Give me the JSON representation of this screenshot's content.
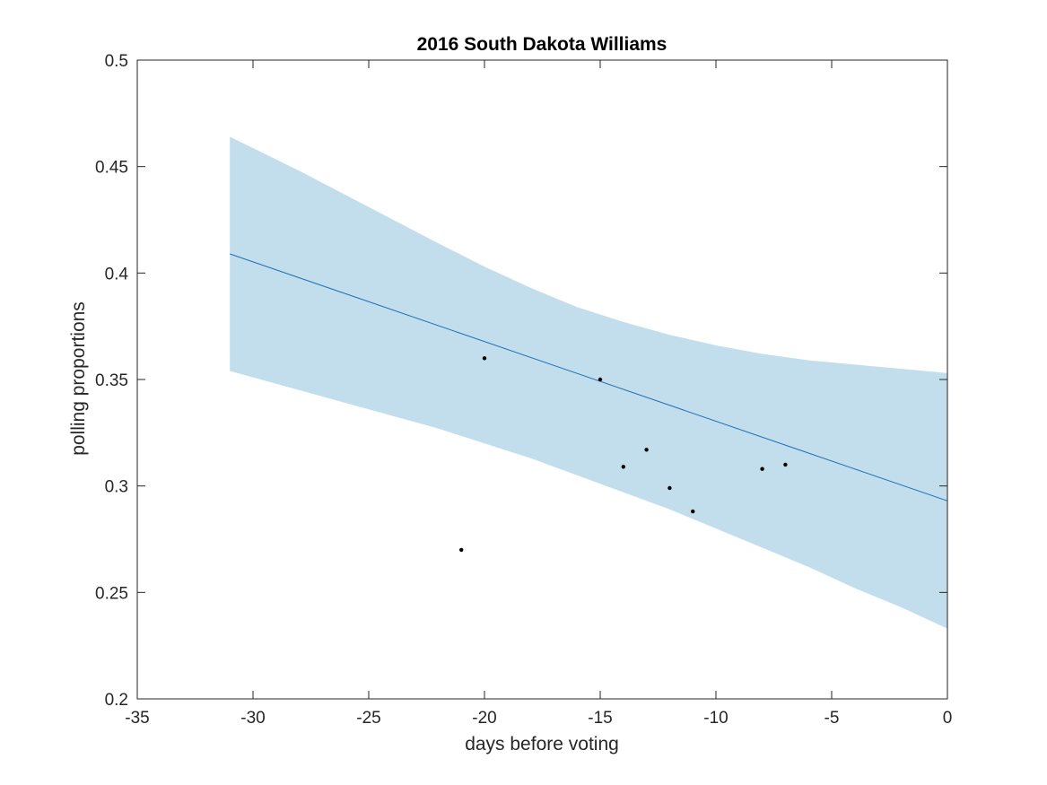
{
  "chart_data": {
    "type": "scatter",
    "title": "2016 South Dakota Williams",
    "xlabel": "days before voting",
    "ylabel": "polling proportions",
    "xlim": [
      -35,
      0
    ],
    "ylim": [
      0.2,
      0.5
    ],
    "x_ticks": [
      -35,
      -30,
      -25,
      -20,
      -15,
      -10,
      -5,
      0
    ],
    "x_tick_labels": [
      "-35",
      "-30",
      "-25",
      "-20",
      "-15",
      "-10",
      "-5",
      "0"
    ],
    "y_ticks": [
      0.2,
      0.25,
      0.3,
      0.35,
      0.4,
      0.45,
      0.5
    ],
    "y_tick_labels": [
      "0.2",
      "0.25",
      "0.3",
      "0.35",
      "0.4",
      "0.45",
      "0.5"
    ],
    "grid": false,
    "colors": {
      "band": "#c2deec",
      "line": "#1f6fb5",
      "points": "#000000",
      "axis": "#262626"
    },
    "points": [
      {
        "x": -21,
        "y": 0.27
      },
      {
        "x": -20,
        "y": 0.36
      },
      {
        "x": -15,
        "y": 0.35
      },
      {
        "x": -14,
        "y": 0.309
      },
      {
        "x": -13,
        "y": 0.317
      },
      {
        "x": -12,
        "y": 0.299
      },
      {
        "x": -11,
        "y": 0.288
      },
      {
        "x": -8,
        "y": 0.308
      },
      {
        "x": -7,
        "y": 0.31
      }
    ],
    "trend_line": {
      "x": [
        -31,
        0
      ],
      "y": [
        0.409,
        0.293
      ]
    },
    "confidence_band": {
      "x": [
        -31,
        -28,
        -25,
        -22,
        -20,
        -18,
        -16,
        -14,
        -12,
        -10,
        -8,
        -6,
        -4,
        -2,
        0
      ],
      "upper": [
        0.464,
        0.448,
        0.431,
        0.414,
        0.403,
        0.393,
        0.384,
        0.377,
        0.371,
        0.366,
        0.362,
        0.359,
        0.357,
        0.355,
        0.353
      ],
      "lower": [
        0.354,
        0.345,
        0.336,
        0.327,
        0.32,
        0.313,
        0.305,
        0.297,
        0.289,
        0.28,
        0.271,
        0.262,
        0.252,
        0.243,
        0.233
      ]
    }
  }
}
